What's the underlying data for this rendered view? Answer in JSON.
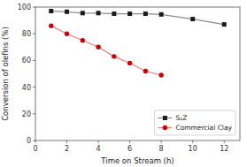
{
  "chart_data": {
    "type": "line",
    "xlabel": "Time on Stream (h)",
    "ylabel": "Conversion of olefins (%)",
    "xlim": [
      0,
      13
    ],
    "xticks": [
      0,
      2,
      4,
      6,
      8,
      10,
      12
    ],
    "ylim": [
      0,
      100
    ],
    "yticks": [
      0,
      20,
      40,
      60,
      80,
      100
    ],
    "grid": false,
    "legend": "lower right",
    "series": [
      {
        "name": "S₂Z",
        "color": "#1a1a1a",
        "marker": "square",
        "x": [
          1,
          2,
          3,
          4,
          5,
          6,
          7,
          8,
          10,
          12
        ],
        "values": [
          97,
          96.5,
          95.5,
          95.5,
          95,
          95,
          95,
          94.5,
          91,
          87
        ]
      },
      {
        "name": "Commercial Clay",
        "color": "#cc0000",
        "marker": "circle",
        "x": [
          1,
          2,
          3,
          4,
          5,
          6,
          7,
          8
        ],
        "values": [
          86,
          80,
          75,
          70,
          63,
          58,
          52,
          49
        ]
      }
    ]
  }
}
